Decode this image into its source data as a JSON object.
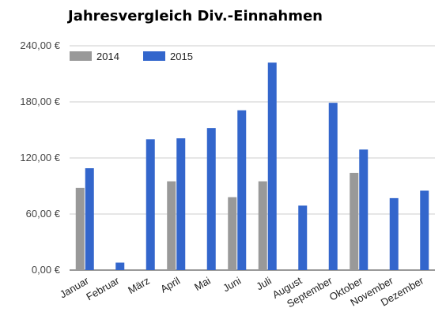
{
  "chart_data": {
    "type": "bar",
    "title": "Jahresvergleich Div.-Einnahmen",
    "xlabel": "",
    "ylabel": "",
    "categories": [
      "Januar",
      "Februar",
      "März",
      "April",
      "Mai",
      "Juni",
      "Juli",
      "August",
      "September",
      "Oktober",
      "November",
      "Dezember"
    ],
    "series": [
      {
        "name": "2014",
        "color": "#999999",
        "values": [
          88,
          0,
          0,
          95,
          0,
          78,
          95,
          0,
          0,
          104,
          0,
          0
        ]
      },
      {
        "name": "2015",
        "color": "#3366cc",
        "values": [
          109,
          8,
          140,
          141,
          152,
          171,
          222,
          69,
          179,
          129,
          77,
          85
        ]
      }
    ],
    "ylim": [
      0,
      240
    ],
    "yticks": [
      0,
      60,
      120,
      180,
      240
    ],
    "ytick_labels": [
      "0,00 €",
      "60,00 €",
      "120,00 €",
      "180,00 €",
      "240,00 €"
    ],
    "grid": "horizontal",
    "legend_position": "top-left"
  }
}
